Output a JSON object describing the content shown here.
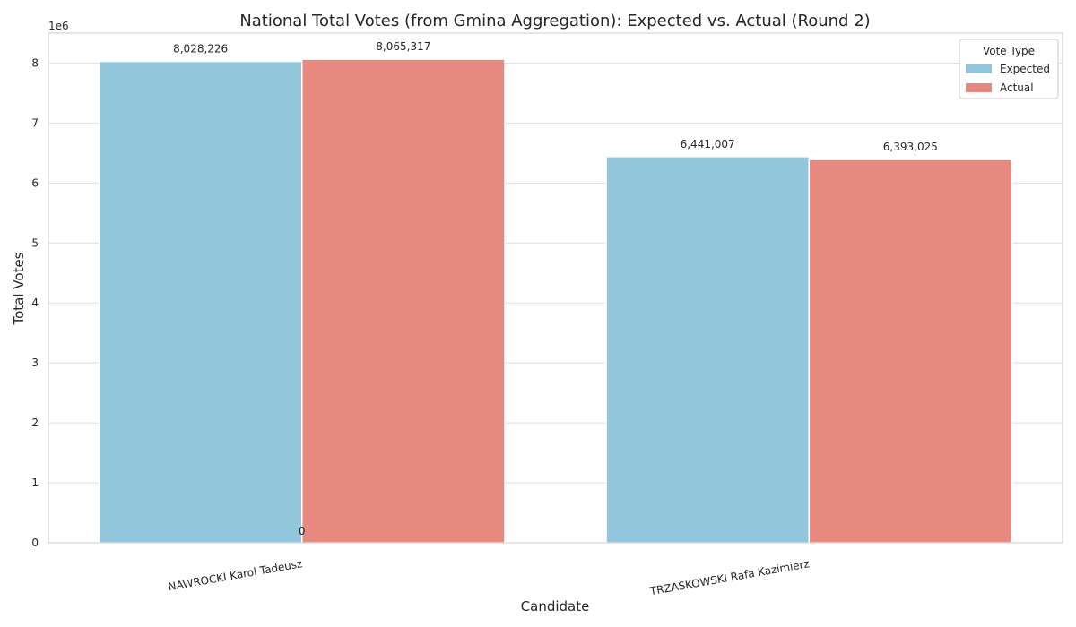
{
  "chart_data": {
    "type": "bar",
    "title": "National Total Votes (from Gmina Aggregation): Expected vs. Actual (Round 2)",
    "xlabel": "Candidate",
    "ylabel": "Total Votes",
    "y_offset_label": "1e6",
    "categories": [
      "NAWROCKI Karol Tadeusz",
      "TRZASKOWSKI Rafa Kazimierz"
    ],
    "series": [
      {
        "name": "Expected",
        "values": [
          8028226,
          6441007
        ],
        "labels": [
          "8,028,226",
          "6,441,007"
        ],
        "color": "#92c6dc"
      },
      {
        "name": "Actual",
        "values": [
          8065317,
          6393025
        ],
        "labels": [
          "8,065,317",
          "6,393,025"
        ],
        "color": "#e8897f"
      }
    ],
    "extra_label": "0",
    "ylim": [
      0,
      8500000
    ],
    "yticks": [
      0,
      1000000,
      2000000,
      3000000,
      4000000,
      5000000,
      6000000,
      7000000,
      8000000
    ],
    "ytick_labels": [
      "0",
      "1",
      "2",
      "3",
      "4",
      "5",
      "6",
      "7",
      "8"
    ],
    "grid": true,
    "legend": {
      "title": "Vote Type",
      "placement": "top-right"
    }
  }
}
